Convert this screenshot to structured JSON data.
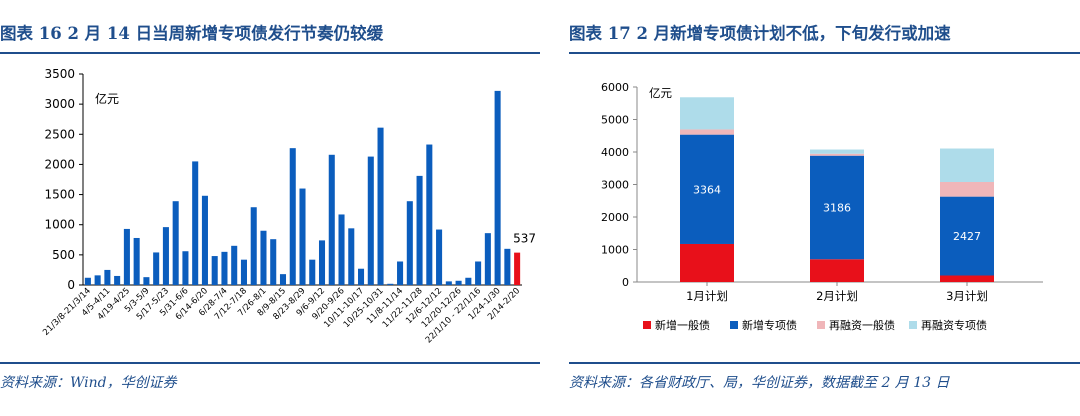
{
  "left": {
    "title": "图表 16   2 月 14 日当周新增专项债发行节奏仍较缓",
    "source": "资料来源：Wind，华创证券"
  },
  "right": {
    "title": "图表 17   2 月新增专项债计划不低，下旬发行或加速",
    "source": "资料来源：各省财政厅、局，华创证券，数据截至 2 月 13 日"
  },
  "colors": {
    "blue": "#0b5dbd",
    "red": "#e8101a",
    "pink": "#f0b6b9",
    "lightblue": "#aedcea",
    "title": "#1f4e8c"
  },
  "chart_data": [
    {
      "type": "bar",
      "unit_label": "亿元",
      "ylim": [
        0,
        3500
      ],
      "yticks": [
        0,
        500,
        1000,
        1500,
        2000,
        2500,
        3000,
        3500
      ],
      "x_tick_labels": [
        "21/3/8-21/3/14",
        "4/5-4/11",
        "4/19-4/25",
        "5/3-5/9",
        "5/17-5/23",
        "5/31-6/6",
        "6/14-6/20",
        "6/28-7/4",
        "7/12-7/18",
        "7/26-8/1",
        "8/9-8/15",
        "8/23-8/29",
        "9/6-9/12",
        "9/20-9/26",
        "10/11-10/17",
        "10/25-10/31",
        "11/8-11/14",
        "11/22-11/28",
        "12/6-12/12",
        "12/20-12/26",
        "22/1/10 - 22/1/16",
        "1/24-1/30",
        "2/14-2/20"
      ],
      "values": [
        120,
        160,
        250,
        150,
        930,
        780,
        130,
        540,
        960,
        1390,
        560,
        2050,
        1480,
        480,
        550,
        650,
        420,
        1290,
        900,
        760,
        180,
        2270,
        1600,
        420,
        740,
        2160,
        1170,
        940,
        270,
        2130,
        2610,
        20,
        390,
        1390,
        1810,
        2330,
        920,
        60,
        70,
        120,
        390,
        860,
        3220,
        600,
        537
      ],
      "highlight_index": 44,
      "data_labels": [
        {
          "index": 44,
          "text": "537"
        }
      ]
    },
    {
      "type": "bar",
      "stacked": true,
      "unit_label": "亿元",
      "ylim": [
        0,
        6000
      ],
      "yticks": [
        0,
        1000,
        2000,
        3000,
        4000,
        5000,
        6000
      ],
      "categories": [
        "1月计划",
        "2月计划",
        "3月计划"
      ],
      "series": [
        {
          "name": "新增一般债",
          "color": "#e8101a",
          "values": [
            1170,
            700,
            200
          ]
        },
        {
          "name": "新增专项债",
          "color": "#0b5dbd",
          "values": [
            3364,
            3186,
            2427
          ]
        },
        {
          "name": "再融资一般债",
          "color": "#f0b6b9",
          "values": [
            160,
            60,
            450
          ]
        },
        {
          "name": "再融资专项债",
          "color": "#aedcea",
          "values": [
            990,
            130,
            1030
          ]
        }
      ],
      "data_labels": [
        {
          "series": 1,
          "index": 0,
          "text": "3364"
        },
        {
          "series": 1,
          "index": 1,
          "text": "3186"
        },
        {
          "series": 1,
          "index": 2,
          "text": "2427"
        }
      ],
      "legend_position": "bottom"
    }
  ]
}
